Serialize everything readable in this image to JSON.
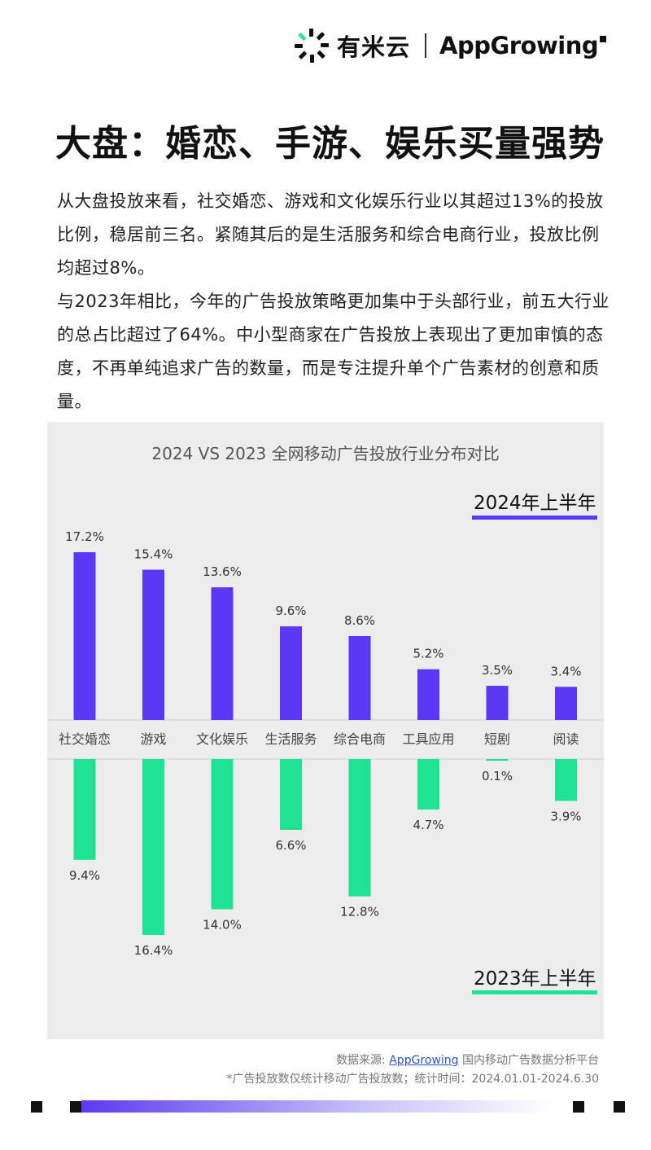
{
  "header": {
    "brand1": "有米云",
    "brand2": "AppGrowing"
  },
  "title": "大盘：婚恋、手游、娱乐买量强势",
  "intro": {
    "p1": "从大盘投放来看，社交婚恋、游戏和文化娱乐行业以其超过13%的投放比例，稳居前三名。紧随其后的是生活服务和综合电商行业，投放比例均超过8%。",
    "p2": "与2023年相比，今年的广告投放策略更加集中于头部行业，前五大行业的总占比超过了64%。中小型商家在广告投放上表现出了更加审慎的态度，不再单纯追求广告的数量，而是专注提升单个广告素材的创意和质量。"
  },
  "colors": {
    "series2024": "#5b38f5",
    "series2023": "#1fe394",
    "panel": "#ededed"
  },
  "chart_data": {
    "type": "bar",
    "title": "2024 VS 2023 全网移动广告投放行业分布对比",
    "categories": [
      "社交婚恋",
      "游戏",
      "文化娱乐",
      "生活服务",
      "综合电商",
      "工具应用",
      "短剧",
      "阅读"
    ],
    "series": [
      {
        "name": "2024年上半年",
        "direction": "up",
        "values": [
          17.2,
          15.4,
          13.6,
          9.6,
          8.6,
          5.2,
          3.5,
          3.4
        ]
      },
      {
        "name": "2023年上半年",
        "direction": "down",
        "values": [
          9.4,
          16.4,
          14.0,
          6.6,
          12.8,
          4.7,
          0.1,
          3.9
        ]
      }
    ],
    "unit": "%",
    "legend": [
      "2024年上半年",
      "2023年上半年"
    ],
    "legend_placement": "top-right / bottom-right"
  },
  "footer": {
    "source_prefix": "数据来源: ",
    "source_link": "AppGrowing",
    "source_suffix": " 国内移动广告数据分析平台",
    "note": "*广告投放数仅统计移动广告投放数；统计时间：2024.01.01-2024.6.30"
  }
}
